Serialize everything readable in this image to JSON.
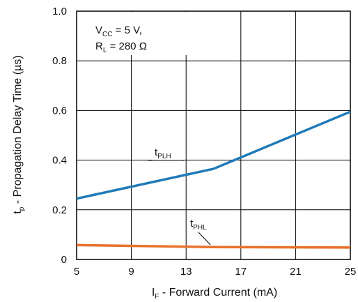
{
  "chart_data": {
    "type": "line",
    "title": "",
    "xlabel": {
      "main": "I",
      "sub": "F",
      "rest": " - Forward Current (mA)"
    },
    "ylabel": {
      "main": "t",
      "sub": "p",
      "rest": " - Propagation Delay Time (µs)"
    },
    "xlim": [
      5,
      25
    ],
    "ylim": [
      0,
      1.0
    ],
    "xticks": [
      5,
      9,
      13,
      17,
      21,
      25
    ],
    "yticks": [
      0,
      0.2,
      0.4,
      0.6,
      0.8,
      1.0
    ],
    "xtick_labels": [
      "5",
      "9",
      "13",
      "17",
      "21",
      "25"
    ],
    "ytick_labels": [
      "0",
      "0.2",
      "0.4",
      "0.6",
      "0.8",
      "1.0"
    ],
    "grid": true,
    "series": [
      {
        "name": {
          "main": "t",
          "sub": "PLH"
        },
        "color": "#1f7ab8",
        "x": [
          5,
          15,
          25
        ],
        "y": [
          0.245,
          0.365,
          0.595
        ]
      },
      {
        "name": {
          "main": "t",
          "sub": "PHL"
        },
        "color": "#e8722a",
        "x": [
          5,
          15,
          25
        ],
        "y": [
          0.058,
          0.05,
          0.048
        ]
      }
    ],
    "annotation": {
      "line1": {
        "main": "V",
        "sub": "CC",
        "rest": " = 5 V,"
      },
      "line2": {
        "main": "R",
        "sub": "L",
        "rest": " = 280 Ω"
      }
    }
  }
}
